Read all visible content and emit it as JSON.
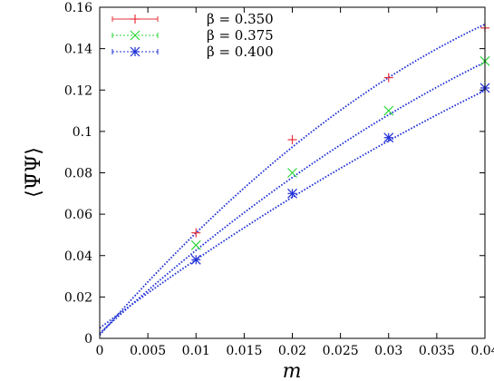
{
  "chart_data": {
    "type": "scatter",
    "title": "",
    "xlabel": "m",
    "ylabel": "⟨Ψ̄Ψ⟩",
    "xlim": [
      0,
      0.04
    ],
    "ylim": [
      0,
      0.16
    ],
    "x_ticks": [
      0,
      0.005,
      0.01,
      0.015,
      0.02,
      0.025,
      0.03,
      0.035,
      0.04
    ],
    "x_tick_labels": [
      "0",
      "0.005",
      "0.01",
      "0.015",
      "0.02",
      "0.025",
      "0.03",
      "0.035",
      "0.04"
    ],
    "y_ticks": [
      0,
      0.02,
      0.04,
      0.06,
      0.08,
      0.1,
      0.12,
      0.14,
      0.16
    ],
    "y_tick_labels": [
      "0",
      "0.02",
      "0.04",
      "0.06",
      "0.08",
      "0.1",
      "0.12",
      "0.14",
      "0.16"
    ],
    "grid": false,
    "legend_position": "top-left",
    "series": [
      {
        "name": "β = 0.350",
        "marker": "plus",
        "color": "#e8323c",
        "x": [
          0.01,
          0.02,
          0.03,
          0.04
        ],
        "y": [
          0.051,
          0.096,
          0.126,
          0.15
        ],
        "fit": {
          "a": 0.0016,
          "b": 5.33,
          "c": 39.4,
          "x_range": [
            0,
            0.04
          ],
          "color": "#1f2fd6"
        }
      },
      {
        "name": "β = 0.375",
        "marker": "cross",
        "color": "#2fd63a",
        "x": [
          0.01,
          0.02,
          0.03,
          0.04
        ],
        "y": [
          0.045,
          0.08,
          0.11,
          0.134
        ],
        "fit": {
          "a": 0.0025,
          "b": 4.25,
          "c": 24.4,
          "x_range": [
            0,
            0.04
          ],
          "color": "#1f2fd6"
        }
      },
      {
        "name": "β = 0.400",
        "marker": "star",
        "color": "#1f2fd6",
        "x": [
          0.01,
          0.02,
          0.03,
          0.04
        ],
        "y": [
          0.038,
          0.07,
          0.097,
          0.121
        ],
        "fit": {
          "a": 0.005,
          "b": 3.45,
          "c": 14.5,
          "x_range": [
            0,
            0.04
          ],
          "color": "#1f2fd6"
        }
      }
    ]
  }
}
